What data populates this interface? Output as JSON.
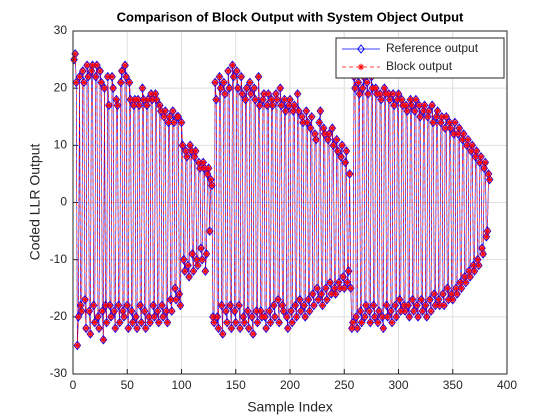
{
  "chart_data": {
    "type": "line",
    "title": "Comparison of Block Output with System Object Output",
    "x_label": "Sample Index",
    "y_label": "Coded LLR Output",
    "xlim": [
      0,
      400
    ],
    "xticks": [
      0,
      50,
      100,
      150,
      200,
      250,
      300,
      350,
      400
    ],
    "ylim": [
      -30,
      30
    ],
    "yticks": [
      -30,
      -20,
      -10,
      0,
      10,
      20,
      30
    ],
    "grid": true,
    "legend": "northeast",
    "x": [
      1,
      2,
      3,
      4,
      5,
      6,
      7,
      8,
      9,
      10,
      11,
      12,
      13,
      14,
      15,
      16,
      17,
      18,
      19,
      20,
      21,
      22,
      23,
      24,
      25,
      26,
      27,
      28,
      29,
      30,
      31,
      32,
      33,
      34,
      35,
      36,
      37,
      38,
      39,
      40,
      41,
      42,
      43,
      44,
      45,
      46,
      47,
      48,
      49,
      50,
      51,
      52,
      53,
      54,
      55,
      56,
      57,
      58,
      59,
      60,
      61,
      62,
      63,
      64,
      65,
      66,
      67,
      68,
      69,
      70,
      71,
      72,
      73,
      74,
      75,
      76,
      77,
      78,
      79,
      80,
      81,
      82,
      83,
      84,
      85,
      86,
      87,
      88,
      89,
      90,
      91,
      92,
      93,
      94,
      95,
      96,
      97,
      98,
      99,
      100,
      101,
      102,
      103,
      104,
      105,
      106,
      107,
      108,
      109,
      110,
      111,
      112,
      113,
      114,
      115,
      116,
      117,
      118,
      119,
      120,
      121,
      122,
      123,
      124,
      125,
      126,
      127,
      128,
      129,
      130,
      131,
      132,
      133,
      134,
      135,
      136,
      137,
      138,
      139,
      140,
      141,
      142,
      143,
      144,
      145,
      146,
      147,
      148,
      149,
      150,
      151,
      152,
      153,
      154,
      155,
      156,
      157,
      158,
      159,
      160,
      161,
      162,
      163,
      164,
      165,
      166,
      167,
      168,
      169,
      170,
      171,
      172,
      173,
      174,
      175,
      176,
      177,
      178,
      179,
      180,
      181,
      182,
      183,
      184,
      185,
      186,
      187,
      188,
      189,
      190,
      191,
      192,
      193,
      194,
      195,
      196,
      197,
      198,
      199,
      200,
      201,
      202,
      203,
      204,
      205,
      206,
      207,
      208,
      209,
      210,
      211,
      212,
      213,
      214,
      215,
      216,
      217,
      218,
      219,
      220,
      221,
      222,
      223,
      224,
      225,
      226,
      227,
      228,
      229,
      230,
      231,
      232,
      233,
      234,
      235,
      236,
      237,
      238,
      239,
      240,
      241,
      242,
      243,
      244,
      245,
      246,
      247,
      248,
      249,
      250,
      251,
      252,
      253,
      254,
      255,
      256,
      257,
      258,
      259,
      260,
      261,
      262,
      263,
      264,
      265,
      266,
      267,
      268,
      269,
      270,
      271,
      272,
      273,
      274,
      275,
      276,
      277,
      278,
      279,
      280,
      281,
      282,
      283,
      284,
      285,
      286,
      287,
      288,
      289,
      290,
      291,
      292,
      293,
      294,
      295,
      296,
      297,
      298,
      299,
      300,
      301,
      302,
      303,
      304,
      305,
      306,
      307,
      308,
      309,
      310,
      311,
      312,
      313,
      314,
      315,
      316,
      317,
      318,
      319,
      320,
      321,
      322,
      323,
      324,
      325,
      326,
      327,
      328,
      329,
      330,
      331,
      332,
      333,
      334,
      335,
      336,
      337,
      338,
      339,
      340,
      341,
      342,
      343,
      344,
      345,
      346,
      347,
      348,
      349,
      350,
      351,
      352,
      353,
      354,
      355,
      356,
      357,
      358,
      359,
      360,
      361,
      362,
      363,
      364,
      365,
      366,
      367,
      368,
      369,
      370,
      371,
      372,
      373,
      374,
      375,
      376,
      377,
      378,
      379,
      380,
      381,
      382,
      383,
      384
    ],
    "series": [
      {
        "name": "Reference output",
        "color": "#0000ff",
        "marker": "diamond",
        "linestyle": "solid",
        "values": [
          25,
          26,
          21,
          -25,
          -20,
          22,
          -18,
          -19,
          23,
          21,
          -17,
          -22,
          24,
          22,
          -19,
          -23,
          23,
          24,
          -18,
          -21,
          22,
          24,
          -20,
          -22,
          23,
          21,
          -19,
          -24,
          20,
          -18,
          -21,
          22,
          17,
          -18,
          -20,
          22,
          20,
          -19,
          -22,
          18,
          17,
          -18,
          -21,
          21,
          23,
          -19,
          -20,
          24,
          22,
          -18,
          -22,
          21,
          18,
          -19,
          -21,
          17,
          18,
          -20,
          -22,
          18,
          17,
          -18,
          -21,
          20,
          18,
          -19,
          -22,
          17,
          18,
          -20,
          -21,
          19,
          18,
          -18,
          -20,
          19,
          18,
          -19,
          -21,
          17,
          16,
          -18,
          -20,
          15,
          16,
          -19,
          -21,
          14,
          15,
          -17,
          -19,
          16,
          14,
          -15,
          -17,
          15,
          15,
          -16,
          -18,
          14,
          10,
          -10,
          -12,
          9,
          8,
          -11,
          -13,
          10,
          9,
          -9,
          -12,
          8,
          9,
          -10,
          -11,
          7,
          6,
          -8,
          -10,
          7,
          6,
          -12,
          -9,
          5,
          6,
          -5,
          4,
          3,
          -20,
          -21,
          21,
          18,
          -20,
          -22,
          22,
          20,
          -18,
          -23,
          21,
          19,
          -19,
          -21,
          23,
          20,
          -18,
          -22,
          24,
          22,
          -19,
          -21,
          23,
          20,
          -18,
          -22,
          22,
          19,
          -20,
          -21,
          18,
          20,
          -19,
          -22,
          21,
          19,
          -20,
          -23,
          20,
          18,
          -19,
          -21,
          22,
          17,
          -19,
          -20,
          18,
          19,
          -20,
          -22,
          17,
          19,
          -19,
          -21,
          18,
          17,
          -18,
          -20,
          19,
          18,
          -17,
          -21,
          20,
          17,
          -18,
          -19,
          18,
          16,
          -20,
          -22,
          17,
          18,
          -19,
          -21,
          16,
          17,
          -18,
          -20,
          19,
          16,
          -17,
          -19,
          15,
          14,
          -18,
          -20,
          16,
          14,
          -17,
          -19,
          13,
          15,
          -16,
          -18,
          12,
          11,
          -15,
          -17,
          14,
          16,
          -16,
          -18,
          13,
          12,
          -15,
          -17,
          11,
          12,
          -14,
          -16,
          13,
          10,
          -15,
          -16,
          11,
          9,
          -14,
          -15,
          8,
          10,
          -13,
          -15,
          7,
          9,
          -14,
          -12,
          5,
          -15,
          -22,
          -21,
          22,
          20,
          -20,
          -22,
          21,
          19,
          -19,
          -21,
          20,
          22,
          -20,
          -18,
          21,
          19,
          -19,
          -21,
          22,
          20,
          -18,
          -20,
          20,
          19,
          -21,
          -19,
          19,
          18,
          -20,
          -22,
          20,
          19,
          -18,
          -20,
          19,
          18,
          -19,
          -21,
          19,
          17,
          -18,
          -20,
          18,
          19,
          -17,
          -19,
          18,
          17,
          -18,
          -19,
          17,
          16,
          -18,
          -20,
          18,
          17,
          -17,
          -19,
          16,
          18,
          -18,
          -20,
          17,
          15,
          -17,
          -19,
          16,
          17,
          -18,
          -20,
          15,
          16,
          -17,
          -19,
          17,
          14,
          -16,
          -18,
          15,
          16,
          -17,
          -18,
          14,
          15,
          -16,
          -18,
          13,
          15,
          -15,
          -17,
          14,
          13,
          -16,
          -17,
          12,
          14,
          -15,
          -16,
          12,
          13,
          -14,
          -15,
          11,
          12,
          -13,
          -14,
          10,
          11,
          -12,
          -13,
          9,
          10,
          -11,
          -12,
          8,
          9,
          -10,
          -11,
          7,
          8,
          -8,
          -9,
          6,
          7,
          -6,
          -5,
          5,
          4
        ]
      },
      {
        "name": "Block output",
        "color": "#ff0000",
        "marker": "asterisk",
        "linestyle": "dashed",
        "values": [
          25,
          26,
          21,
          -25,
          -20,
          22,
          -18,
          -19,
          23,
          21,
          -17,
          -22,
          24,
          22,
          -19,
          -23,
          23,
          24,
          -18,
          -21,
          22,
          24,
          -20,
          -22,
          23,
          21,
          -19,
          -24,
          20,
          -18,
          -21,
          22,
          17,
          -18,
          -20,
          22,
          20,
          -19,
          -22,
          18,
          17,
          -18,
          -21,
          21,
          23,
          -19,
          -20,
          24,
          22,
          -18,
          -22,
          21,
          18,
          -19,
          -21,
          17,
          18,
          -20,
          -22,
          18,
          17,
          -18,
          -21,
          20,
          18,
          -19,
          -22,
          17,
          18,
          -20,
          -21,
          19,
          18,
          -18,
          -20,
          19,
          18,
          -19,
          -21,
          17,
          16,
          -18,
          -20,
          15,
          16,
          -19,
          -21,
          14,
          15,
          -17,
          -19,
          16,
          14,
          -15,
          -17,
          15,
          15,
          -16,
          -18,
          14,
          10,
          -10,
          -12,
          9,
          8,
          -11,
          -13,
          10,
          9,
          -9,
          -12,
          8,
          9,
          -10,
          -11,
          7,
          6,
          -8,
          -10,
          7,
          6,
          -12,
          -9,
          5,
          6,
          -5,
          4,
          3,
          -20,
          -21,
          21,
          18,
          -20,
          -22,
          22,
          20,
          -18,
          -23,
          21,
          19,
          -19,
          -21,
          23,
          20,
          -18,
          -22,
          24,
          22,
          -19,
          -21,
          23,
          20,
          -18,
          -22,
          22,
          19,
          -20,
          -21,
          18,
          20,
          -19,
          -22,
          21,
          19,
          -20,
          -23,
          20,
          18,
          -19,
          -21,
          22,
          17,
          -19,
          -20,
          18,
          19,
          -20,
          -22,
          17,
          19,
          -19,
          -21,
          18,
          17,
          -18,
          -20,
          19,
          18,
          -17,
          -21,
          20,
          17,
          -18,
          -19,
          18,
          16,
          -20,
          -22,
          17,
          18,
          -19,
          -21,
          16,
          17,
          -18,
          -20,
          19,
          16,
          -17,
          -19,
          15,
          14,
          -18,
          -20,
          16,
          14,
          -17,
          -19,
          13,
          15,
          -16,
          -18,
          12,
          11,
          -15,
          -17,
          14,
          16,
          -16,
          -18,
          13,
          12,
          -15,
          -17,
          11,
          12,
          -14,
          -16,
          13,
          10,
          -15,
          -16,
          11,
          9,
          -14,
          -15,
          8,
          10,
          -13,
          -15,
          7,
          9,
          -14,
          -12,
          5,
          -15,
          -22,
          -21,
          22,
          20,
          -20,
          -22,
          21,
          19,
          -19,
          -21,
          20,
          22,
          -20,
          -18,
          21,
          19,
          -19,
          -21,
          22,
          20,
          -18,
          -20,
          20,
          19,
          -21,
          -19,
          19,
          18,
          -20,
          -22,
          20,
          19,
          -18,
          -20,
          19,
          18,
          -19,
          -21,
          19,
          17,
          -18,
          -20,
          18,
          19,
          -17,
          -19,
          18,
          17,
          -18,
          -19,
          17,
          16,
          -18,
          -20,
          18,
          17,
          -17,
          -19,
          16,
          18,
          -18,
          -20,
          17,
          15,
          -17,
          -19,
          16,
          17,
          -18,
          -20,
          15,
          16,
          -17,
          -19,
          17,
          14,
          -16,
          -18,
          15,
          16,
          -17,
          -18,
          14,
          15,
          -16,
          -18,
          13,
          15,
          -15,
          -17,
          14,
          13,
          -16,
          -17,
          12,
          14,
          -15,
          -16,
          12,
          13,
          -14,
          -15,
          11,
          12,
          -13,
          -14,
          10,
          11,
          -12,
          -13,
          9,
          10,
          -11,
          -12,
          8,
          9,
          -10,
          -11,
          7,
          8,
          -8,
          -9,
          6,
          7,
          -6,
          -5,
          5,
          4
        ]
      }
    ]
  }
}
